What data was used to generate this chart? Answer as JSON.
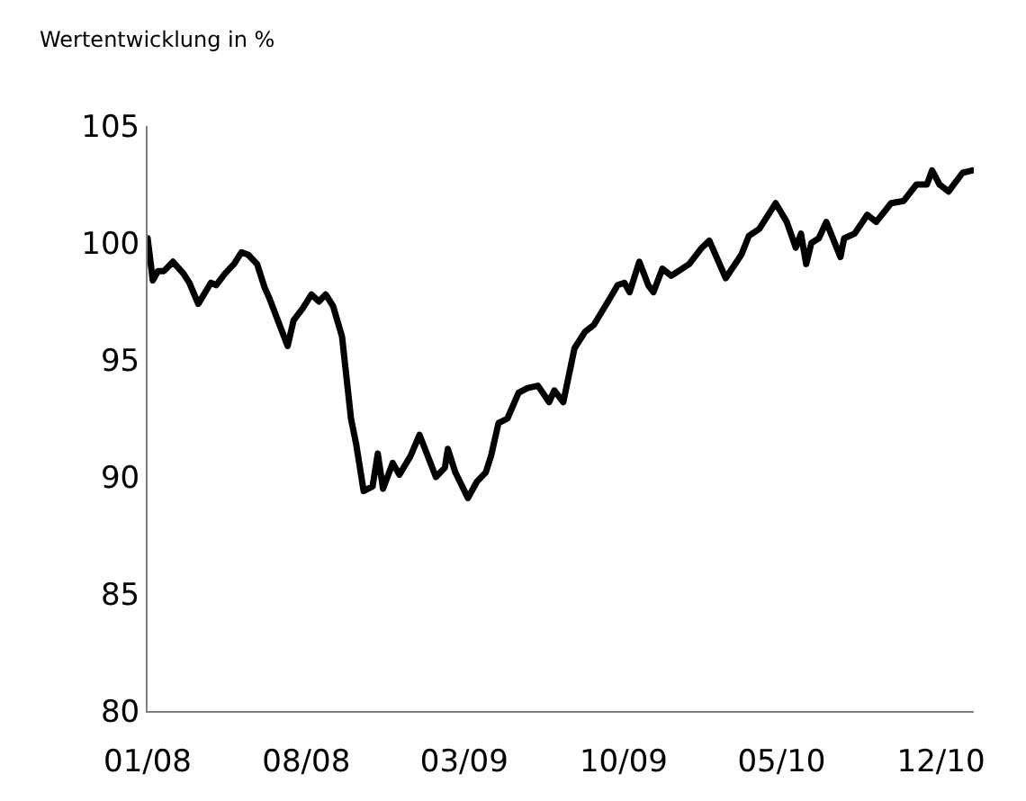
{
  "chart_data": {
    "type": "line",
    "title": "Wertentwicklung in %",
    "x": [
      "2008-01-01",
      "2008-01-08",
      "2008-01-15",
      "2008-01-23",
      "2008-02-04",
      "2008-02-18",
      "2008-02-26",
      "2008-03-09",
      "2008-03-26",
      "2008-04-02",
      "2008-04-14",
      "2008-04-26",
      "2008-05-06",
      "2008-05-15",
      "2008-05-27",
      "2008-06-06",
      "2008-06-13",
      "2008-07-07",
      "2008-07-15",
      "2008-07-27",
      "2008-08-08",
      "2008-08-18",
      "2008-08-27",
      "2008-09-06",
      "2008-09-18",
      "2008-09-30",
      "2008-10-07",
      "2008-10-17",
      "2008-10-29",
      "2008-11-05",
      "2008-11-12",
      "2008-11-25",
      "2008-12-04",
      "2008-12-19",
      "2008-12-31",
      "2009-01-22",
      "2009-02-03",
      "2009-02-07",
      "2009-02-17",
      "2009-03-06",
      "2009-03-18",
      "2009-03-30",
      "2009-04-06",
      "2009-04-16",
      "2009-04-28",
      "2009-05-13",
      "2009-05-25",
      "2009-06-08",
      "2009-06-23",
      "2009-06-30",
      "2009-07-12",
      "2009-07-27",
      "2009-08-10",
      "2009-08-22",
      "2009-09-10",
      "2009-09-23",
      "2009-10-02",
      "2009-10-09",
      "2009-10-22",
      "2009-11-03",
      "2009-11-10",
      "2009-11-22",
      "2009-12-04",
      "2009-12-28",
      "2010-01-14",
      "2010-01-24",
      "2010-02-15",
      "2010-03-08",
      "2010-03-18",
      "2010-04-01",
      "2010-04-23",
      "2010-05-08",
      "2010-05-20",
      "2010-05-27",
      "2010-06-03",
      "2010-06-10",
      "2010-06-20",
      "2010-06-30",
      "2010-07-19",
      "2010-07-24",
      "2010-08-07",
      "2010-08-24",
      "2010-09-05",
      "2010-09-25",
      "2010-10-12",
      "2010-10-29",
      "2010-11-12",
      "2010-11-19",
      "2010-11-29",
      "2010-12-11",
      "2010-12-30",
      "2011-01-12"
    ],
    "series": [
      {
        "color": "#000000",
        "values": [
          100.2,
          98.4,
          98.8,
          98.8,
          99.2,
          98.7,
          98.3,
          97.4,
          98.3,
          98.2,
          98.7,
          99.1,
          99.6,
          99.5,
          99.1,
          98.1,
          97.6,
          95.6,
          96.7,
          97.2,
          97.8,
          97.5,
          97.8,
          97.3,
          96.0,
          92.5,
          91.4,
          89.4,
          89.6,
          91.0,
          89.5,
          90.6,
          90.1,
          90.9,
          91.8,
          90.0,
          90.4,
          91.2,
          90.2,
          89.1,
          89.8,
          90.2,
          90.9,
          92.3,
          92.5,
          93.6,
          93.8,
          93.9,
          93.2,
          93.7,
          93.2,
          95.5,
          96.2,
          96.5,
          97.5,
          98.2,
          98.3,
          97.9,
          99.2,
          98.2,
          97.9,
          98.9,
          98.6,
          99.1,
          99.8,
          100.1,
          98.5,
          99.5,
          100.3,
          100.6,
          101.7,
          100.9,
          99.8,
          100.4,
          99.1,
          100.0,
          100.2,
          100.9,
          99.4,
          100.2,
          100.4,
          101.2,
          100.9,
          101.7,
          101.8,
          102.5,
          102.5,
          103.1,
          102.5,
          102.2,
          103.0,
          103.1
        ]
      }
    ],
    "xlim": [
      "2008-01-01",
      "2011-01-14"
    ],
    "xticks": [
      {
        "value": "2008-01-01",
        "label": "01/08"
      },
      {
        "value": "2008-08-01",
        "label": "08/08"
      },
      {
        "value": "2009-03-01",
        "label": "03/09"
      },
      {
        "value": "2009-10-01",
        "label": "10/09"
      },
      {
        "value": "2010-05-01",
        "label": "05/10"
      },
      {
        "value": "2010-12-01",
        "label": "12/10"
      }
    ],
    "ylim": [
      80,
      105
    ],
    "yticks": [
      80,
      85,
      90,
      95,
      100,
      105
    ],
    "marker": "none",
    "line_style": "solid"
  }
}
